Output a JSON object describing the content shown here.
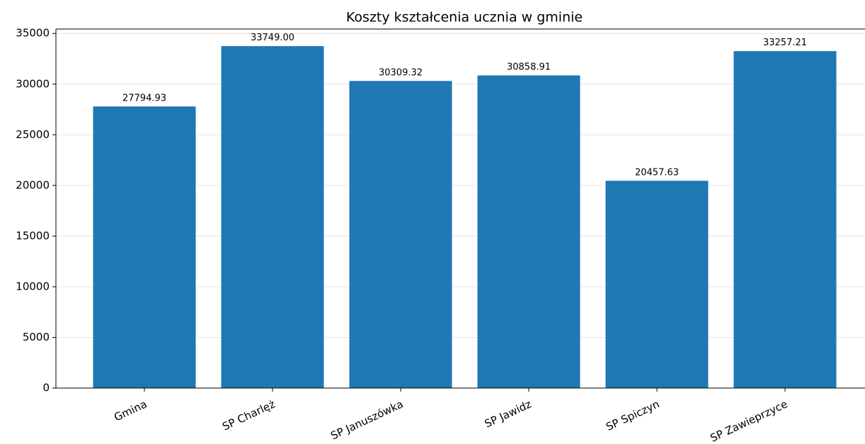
{
  "chart_data": {
    "type": "bar",
    "title": "Koszty kształcenia ucznia w gminie",
    "categories": [
      "Gmina",
      "SP Charlęż",
      "SP Januszówka",
      "SP Jawidz",
      "SP Spiczyn",
      "SP Zawieprzyce"
    ],
    "values": [
      27794.93,
      33749.0,
      30309.32,
      30858.91,
      20457.63,
      33257.21
    ],
    "value_labels": [
      "27794.93",
      "33749.00",
      "30309.32",
      "30858.91",
      "20457.63",
      "33257.21"
    ],
    "color": "#1f77b4",
    "ylim": [
      0,
      35436.45
    ],
    "yticks": [
      0,
      5000,
      10000,
      15000,
      20000,
      25000,
      30000,
      35000
    ],
    "grid": true
  }
}
